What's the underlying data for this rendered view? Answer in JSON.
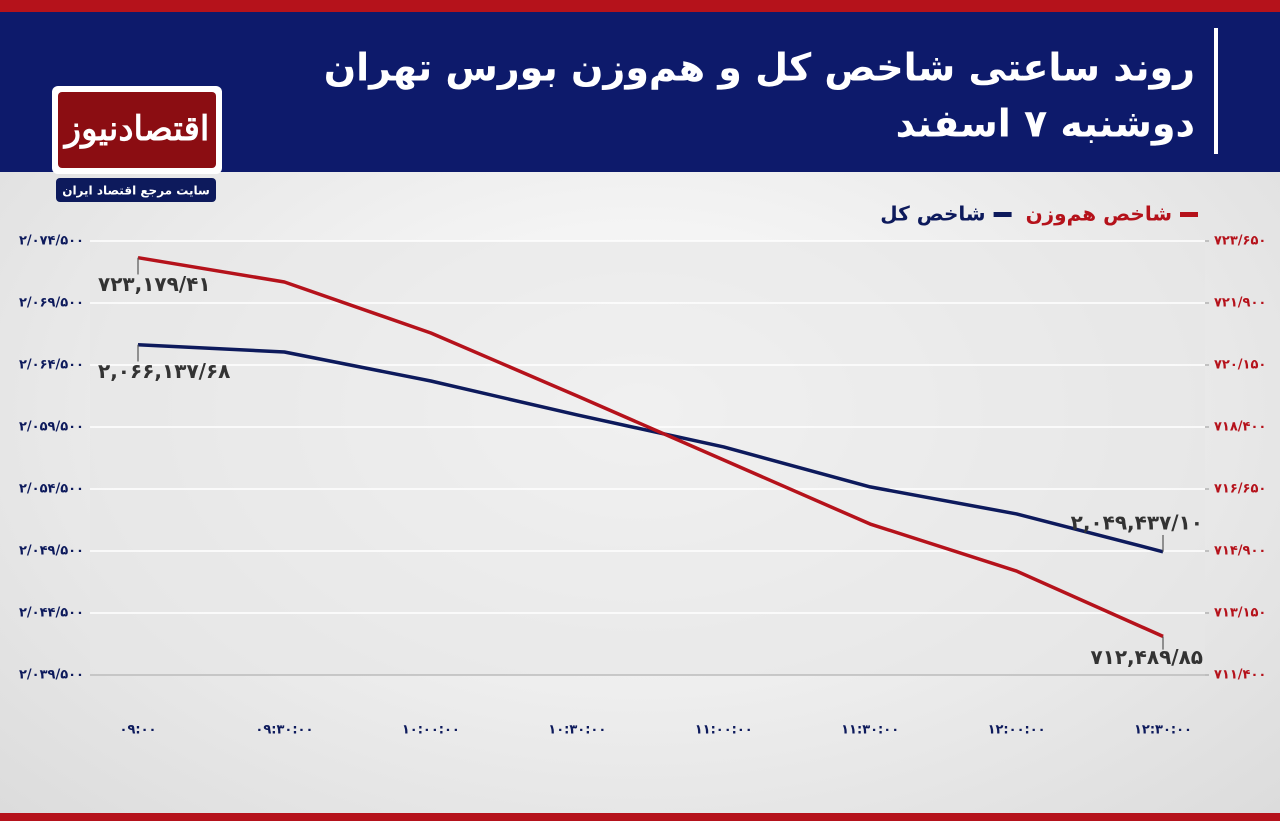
{
  "logo": {
    "name": "اقتصادنیوز",
    "tagline": "سایت مرجع اقتصاد ایران"
  },
  "chart_data": {
    "type": "line",
    "title": "روند ساعتی شاخص کل و هم‌وزن بورس تهران",
    "subtitle": "دوشنبه ۷ اسفند",
    "categories": [
      "۰۹:۰۰",
      "۰۹:۳۰:۰۰",
      "۱۰:۰۰:۰۰",
      "۱۰:۳۰:۰۰",
      "۱۱:۰۰:۰۰",
      "۱۱:۳۰:۰۰",
      "۱۲:۰۰:۰۰",
      "۱۲:۳۰:۰۰"
    ],
    "series": [
      {
        "name": "شاخص کل",
        "color": "#0d1a5c",
        "axis": "y",
        "values": [
          2066137.68,
          2065550,
          2063210,
          2060470,
          2057890,
          2054670,
          2052490,
          2049437.1
        ],
        "value_labels": [
          "۲,۰۶۶,۱۳۷/۶۸",
          null,
          null,
          null,
          null,
          null,
          null,
          "۲,۰۴۹,۴۳۷/۱۰"
        ]
      },
      {
        "name": "شاخص هم‌وزن",
        "color": "#b5121b",
        "axis": "y2",
        "values": [
          723179.41,
          722493,
          721053,
          719274,
          717468,
          715661,
          714334,
          712489.85
        ],
        "value_labels": [
          "۷۲۳,۱۷۹/۴۱",
          null,
          null,
          null,
          null,
          null,
          null,
          "۷۱۲,۴۸۹/۸۵"
        ]
      }
    ],
    "ylim": [
      2039500,
      2074500
    ],
    "yticks": [
      {
        "value": 2039500,
        "label": "۲/۰۳۹/۵۰۰"
      },
      {
        "value": 2044500,
        "label": "۲/۰۴۴/۵۰۰"
      },
      {
        "value": 2049500,
        "label": "۲/۰۴۹/۵۰۰"
      },
      {
        "value": 2054500,
        "label": "۲/۰۵۴/۵۰۰"
      },
      {
        "value": 2059500,
        "label": "۲/۰۵۹/۵۰۰"
      },
      {
        "value": 2064500,
        "label": "۲/۰۶۴/۵۰۰"
      },
      {
        "value": 2069500,
        "label": "۲/۰۶۹/۵۰۰"
      },
      {
        "value": 2074500,
        "label": "۲/۰۷۴/۵۰۰"
      }
    ],
    "y2lim": [
      711400,
      723650
    ],
    "y2ticks": [
      {
        "value": 711400,
        "label": "۷۱۱/۴۰۰"
      },
      {
        "value": 713150,
        "label": "۷۱۳/۱۵۰"
      },
      {
        "value": 714900,
        "label": "۷۱۴/۹۰۰"
      },
      {
        "value": 716650,
        "label": "۷۱۶/۶۵۰"
      },
      {
        "value": 718400,
        "label": "۷۱۸/۴۰۰"
      },
      {
        "value": 720150,
        "label": "۷۲۰/۱۵۰"
      },
      {
        "value": 721900,
        "label": "۷۲۱/۹۰۰"
      },
      {
        "value": 723650,
        "label": "۷۲۳/۶۵۰"
      }
    ],
    "grid": true,
    "legend": "top-right"
  }
}
